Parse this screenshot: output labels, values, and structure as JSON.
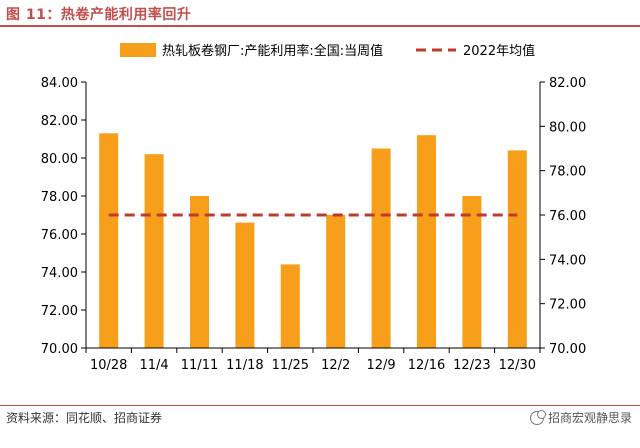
{
  "header": {
    "title": "图 11：热卷产能利用率回升"
  },
  "footer": {
    "source": "资料来源：同花顺、招商证券",
    "watermark": "招商宏观静思录"
  },
  "colors": {
    "bar": "#f79e1b",
    "avg_line": "#c0392b",
    "title": "#c0504d",
    "axis": "#000000"
  },
  "icons": {
    "watermark": "wechat-icon"
  },
  "chart_data": {
    "type": "bar",
    "categories": [
      "10/28",
      "11/4",
      "11/11",
      "11/18",
      "11/25",
      "12/2",
      "12/9",
      "12/16",
      "12/23",
      "12/30"
    ],
    "series": [
      {
        "name": "热轧板卷钢厂:产能利用率:全国:当周值",
        "type": "bar",
        "axis": "left",
        "values": [
          81.3,
          80.2,
          78.0,
          76.6,
          74.4,
          77.0,
          80.5,
          81.2,
          78.0,
          80.4
        ]
      },
      {
        "name": "2022年均值",
        "type": "line",
        "style": "dashed",
        "axis": "left",
        "values": [
          77.0,
          77.0,
          77.0,
          77.0,
          77.0,
          77.0,
          77.0,
          77.0,
          77.0,
          77.0
        ]
      }
    ],
    "y_left": {
      "min": 70,
      "max": 84,
      "step": 2,
      "ticks": [
        "70.00",
        "72.00",
        "74.00",
        "76.00",
        "78.00",
        "80.00",
        "82.00",
        "84.00"
      ]
    },
    "y_right": {
      "min": 70,
      "max": 82,
      "step": 2,
      "ticks": [
        "70.00",
        "72.00",
        "74.00",
        "76.00",
        "78.00",
        "80.00",
        "82.00"
      ]
    },
    "legend": "top",
    "grid": false
  }
}
